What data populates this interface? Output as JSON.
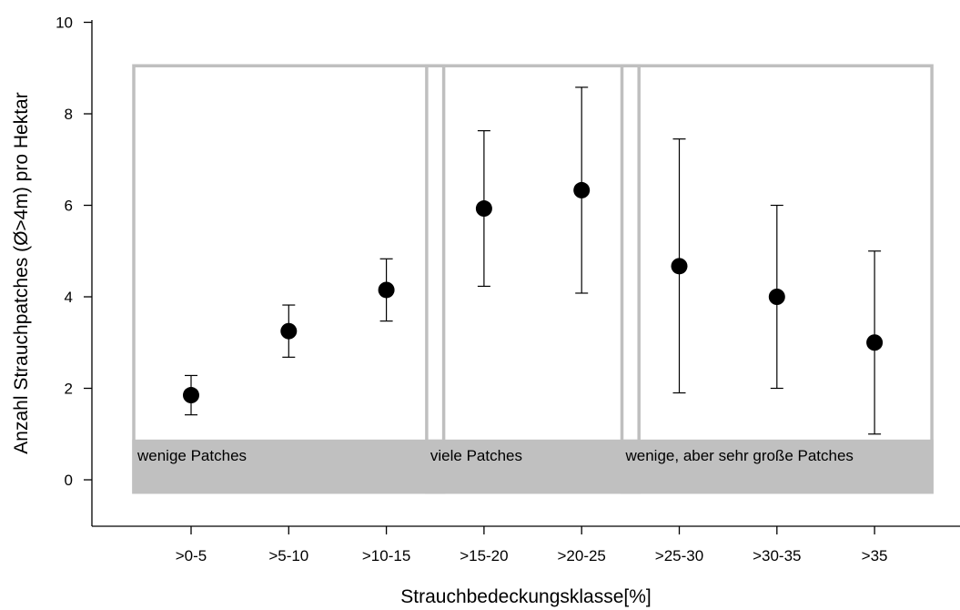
{
  "chart_data": {
    "type": "scatter",
    "xlabel": "Strauchbedeckungsklasse[%]",
    "ylabel": "Anzahl Strauchpatches (Ø>4m) pro Hektar",
    "ylim": [
      -0.3,
      10
    ],
    "yticks": [
      0,
      2,
      4,
      6,
      8,
      10
    ],
    "categories": [
      ">0-5",
      ">5-10",
      ">10-15",
      ">15-20",
      ">20-25",
      ">25-30",
      ">30-35",
      ">35"
    ],
    "series": [
      {
        "values": [
          1.85,
          3.25,
          4.15,
          5.93,
          6.33,
          4.67,
          4.0,
          3.0
        ],
        "error_low": [
          1.42,
          2.68,
          3.47,
          4.23,
          4.08,
          1.9,
          2.0,
          1.0
        ],
        "error_high": [
          2.28,
          3.82,
          4.83,
          7.63,
          8.58,
          7.45,
          6.0,
          5.0
        ]
      }
    ],
    "marker_color": "#000000",
    "grid": false,
    "groups": [
      {
        "label": "wenige Patches",
        "categories": [
          ">0-5",
          ">5-10",
          ">10-15"
        ]
      },
      {
        "label": "viele Patches",
        "categories": [
          ">15-20",
          ">20-25"
        ]
      },
      {
        "label": "wenige, aber sehr große Patches",
        "categories": [
          ">25-30",
          ">30-35",
          ">35"
        ]
      }
    ],
    "group_box_color": "#bfbfbf",
    "group_band_color": "#c0c0c0"
  }
}
